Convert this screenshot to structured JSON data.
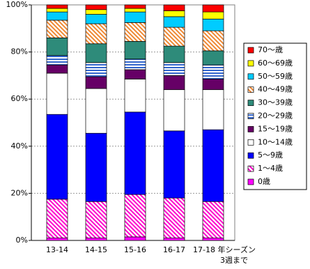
{
  "chart_data": {
    "type": "stacked_bar",
    "categories": [
      "13-14",
      "14-15",
      "15-16",
      "16-17",
      "17-18 年シーズン\n3週まで"
    ],
    "ylim": [
      0,
      100
    ],
    "yticks": [
      {
        "value": 0,
        "label": "0%"
      },
      {
        "value": 20,
        "label": "20%"
      },
      {
        "value": 40,
        "label": "40%"
      },
      {
        "value": 60,
        "label": "60%"
      },
      {
        "value": 80,
        "label": "80%"
      },
      {
        "value": 100,
        "label": "100%"
      }
    ],
    "grid": true,
    "legend": "right",
    "series": [
      {
        "name": "0歳",
        "color": "#ff00ff",
        "values": [
          1,
          1,
          1.5,
          1,
          1
        ]
      },
      {
        "name": "1～4歳",
        "color": "#ff00cc",
        "pattern": "diagonal",
        "values": [
          16.5,
          15.5,
          18,
          17,
          15.5
        ]
      },
      {
        "name": "5～9歳",
        "color": "#0000ff",
        "values": [
          36,
          29,
          35,
          28.5,
          30.5
        ]
      },
      {
        "name": "10～14歳",
        "color": "#ffffff",
        "values": [
          17.5,
          19,
          14,
          17.5,
          17
        ]
      },
      {
        "name": "15～19歳",
        "color": "#660066",
        "values": [
          3.5,
          5,
          4,
          6,
          4.5
        ]
      },
      {
        "name": "20～29歳",
        "color": "#3366cc",
        "pattern": "horizontal",
        "values": [
          4,
          6,
          4.5,
          5.5,
          6
        ]
      },
      {
        "name": "30～39歳",
        "color": "#2e8b7a",
        "values": [
          7.5,
          8,
          7.5,
          7,
          6
        ]
      },
      {
        "name": "40～49歳",
        "color": "#ee8833",
        "pattern": "diagonal",
        "values": [
          7.5,
          8.5,
          8,
          8,
          8.5
        ]
      },
      {
        "name": "50～59歳",
        "color": "#00ccff",
        "values": [
          3.5,
          4,
          4.5,
          4.5,
          5
        ]
      },
      {
        "name": "60～69歳",
        "color": "#ffff00",
        "values": [
          1.5,
          2,
          1.5,
          2.5,
          3
        ]
      },
      {
        "name": "70～歳",
        "color": "#ff0000",
        "values": [
          1.5,
          2,
          1.5,
          2.5,
          3
        ]
      }
    ]
  }
}
